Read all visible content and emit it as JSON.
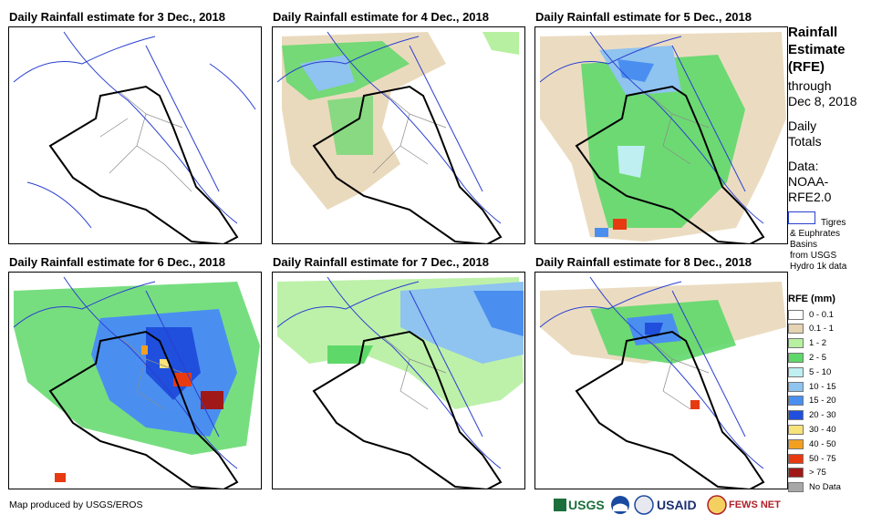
{
  "panels": [
    {
      "title": "Daily Rainfall estimate for 3 Dec., 2018"
    },
    {
      "title": "Daily Rainfall estimate for 4 Dec., 2018"
    },
    {
      "title": "Daily Rainfall estimate for 5 Dec., 2018"
    },
    {
      "title": "Daily Rainfall estimate for 6 Dec., 2018"
    },
    {
      "title": "Daily Rainfall estimate for 7 Dec., 2018"
    },
    {
      "title": "Daily Rainfall estimate for 8 Dec., 2018"
    }
  ],
  "sidebar": {
    "title_lines": [
      "Rainfall",
      "Estimate",
      "(RFE)"
    ],
    "through": "through",
    "date": "Dec 8, 2018",
    "daily": "Daily",
    "totals": "Totals",
    "data_label": "Data:",
    "data_src1": "NOAA-",
    "data_src2": "RFE2.0",
    "basin_lines": [
      "Tigres",
      "& Euphrates",
      "Basins",
      "from USGS",
      "Hydro 1k data"
    ]
  },
  "legend": {
    "title": "RFE (mm)",
    "items": [
      {
        "label": "0 - 0.1",
        "color": "#ffffff"
      },
      {
        "label": "0.1 - 1",
        "color": "#e6d3b1"
      },
      {
        "label": "1 - 2",
        "color": "#b6f0a0"
      },
      {
        "label": "2 - 5",
        "color": "#5fd86a"
      },
      {
        "label": "5 - 10",
        "color": "#bfeff0"
      },
      {
        "label": "10 - 15",
        "color": "#8fc3f0"
      },
      {
        "label": "15 - 20",
        "color": "#4a8ff0"
      },
      {
        "label": "20 - 30",
        "color": "#1f4fdc"
      },
      {
        "label": "30 - 40",
        "color": "#f8e27a"
      },
      {
        "label": "40 - 50",
        "color": "#f3a020"
      },
      {
        "label": "50 - 75",
        "color": "#e83a10"
      },
      {
        "label": "> 75",
        "color": "#a01818"
      },
      {
        "label": "No Data",
        "color": "#a8a8a8"
      }
    ]
  },
  "footer": {
    "credit": "Map produced by USGS/EROS"
  },
  "logos": {
    "usgs": "USGS",
    "usaid": "USAID",
    "fewsnet": "FEWS NET"
  },
  "colors": {
    "river": "#2a3fd0",
    "border": "#000000",
    "admin": "#8a8a8a"
  }
}
